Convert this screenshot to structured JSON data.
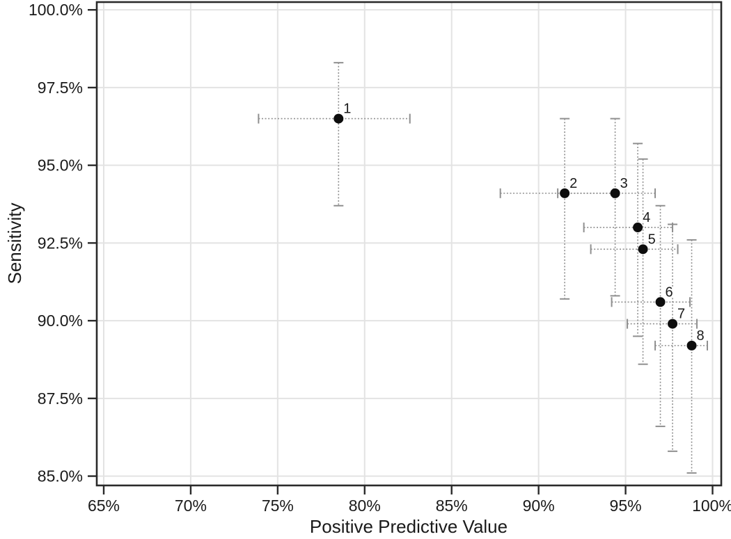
{
  "chart_data": {
    "type": "scatter",
    "title": "",
    "xlabel": "Positive Predictive Value",
    "ylabel": "Sensitivity",
    "xlim": [
      64.6,
      100.5
    ],
    "ylim": [
      84.7,
      100.25
    ],
    "grid": true,
    "legend": "none",
    "error_bar_style": "dashed gray with solid caps",
    "x_ticks": [
      {
        "value": 65,
        "label": "65%"
      },
      {
        "value": 70,
        "label": "70%"
      },
      {
        "value": 75,
        "label": "75%"
      },
      {
        "value": 80,
        "label": "80%"
      },
      {
        "value": 85,
        "label": "85%"
      },
      {
        "value": 90,
        "label": "90%"
      },
      {
        "value": 95,
        "label": "95%"
      },
      {
        "value": 100,
        "label": "100%"
      }
    ],
    "y_ticks": [
      {
        "value": 100.0,
        "label": "100.0%"
      },
      {
        "value": 97.5,
        "label": "97.5%"
      },
      {
        "value": 95.0,
        "label": "95.0%"
      },
      {
        "value": 92.5,
        "label": "92.5%"
      },
      {
        "value": 90.0,
        "label": "90.0%"
      },
      {
        "value": 87.5,
        "label": "87.5%"
      },
      {
        "value": 85.0,
        "label": "85.0%"
      }
    ],
    "points": [
      {
        "label": "1",
        "x": 78.5,
        "x_lo": 73.9,
        "x_hi": 82.6,
        "y": 96.5,
        "y_lo": 93.7,
        "y_hi": 98.3
      },
      {
        "label": "2",
        "x": 91.5,
        "x_lo": 87.8,
        "x_hi": 94.3,
        "y": 94.1,
        "y_lo": 90.7,
        "y_hi": 96.5
      },
      {
        "label": "3",
        "x": 94.4,
        "x_lo": 91.1,
        "x_hi": 96.7,
        "y": 94.1,
        "y_lo": 90.8,
        "y_hi": 96.5
      },
      {
        "label": "4",
        "x": 95.7,
        "x_lo": 92.6,
        "x_hi": 97.7,
        "y": 93.0,
        "y_lo": 89.5,
        "y_hi": 95.7
      },
      {
        "label": "5",
        "x": 96.0,
        "x_lo": 93.0,
        "x_hi": 98.0,
        "y": 92.3,
        "y_lo": 88.6,
        "y_hi": 95.2
      },
      {
        "label": "6",
        "x": 97.0,
        "x_lo": 94.2,
        "x_hi": 98.7,
        "y": 90.6,
        "y_lo": 86.6,
        "y_hi": 93.7
      },
      {
        "label": "7",
        "x": 97.7,
        "x_lo": 95.1,
        "x_hi": 99.1,
        "y": 89.9,
        "y_lo": 85.8,
        "y_hi": 93.1
      },
      {
        "label": "8",
        "x": 98.8,
        "x_lo": 96.7,
        "x_hi": 99.7,
        "y": 89.2,
        "y_lo": 85.1,
        "y_hi": 92.6
      }
    ],
    "colors": {
      "marker": "#0d0d0d",
      "error_bar": "#8f8f8f",
      "grid": "#e3e3e3",
      "axis": "#2a2a2a",
      "text": "#1a1a1a",
      "background": "#ffffff"
    }
  }
}
